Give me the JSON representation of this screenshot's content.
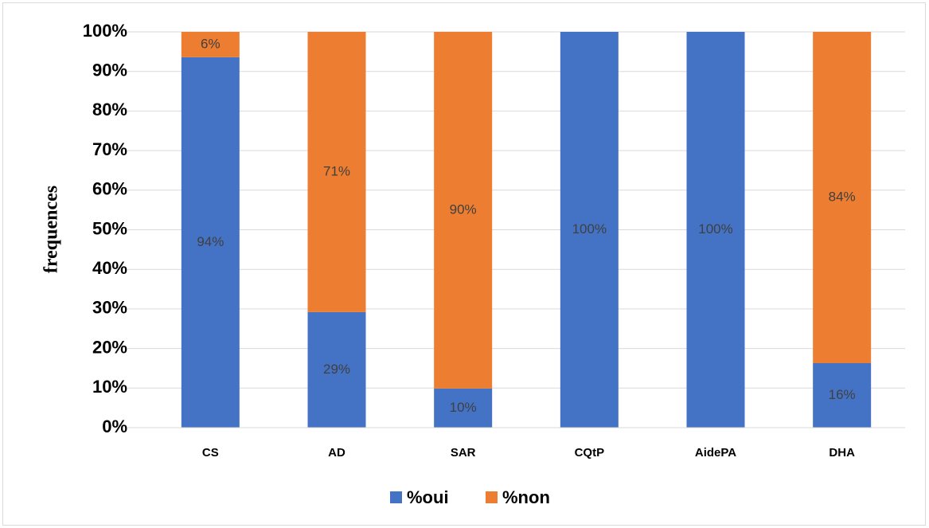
{
  "chart_data": {
    "type": "stacked_bar",
    "y_label": "frequences",
    "categories": [
      "CS",
      "AD",
      "SAR",
      "CQtP",
      "AidePA",
      "DHA"
    ],
    "series": [
      {
        "name": "%oui",
        "color": "#4472c4",
        "values": [
          93.6,
          29.2,
          9.9,
          100,
          100,
          16.3
        ],
        "value_labels": [
          "94%",
          "29%",
          "10%",
          "100%",
          "100%",
          "16%"
        ]
      },
      {
        "name": "%non",
        "color": "#ed7d31",
        "values": [
          6.4,
          70.8,
          90.1,
          0,
          0,
          83.7
        ],
        "value_labels": [
          "6%",
          "71%",
          "90%",
          null,
          null,
          "84%"
        ]
      }
    ],
    "ylim": [
      0,
      100
    ],
    "yticks": [
      {
        "value": 0,
        "label": "0%"
      },
      {
        "value": 10,
        "label": "10%"
      },
      {
        "value": 20,
        "label": "20%"
      },
      {
        "value": 30,
        "label": "30%"
      },
      {
        "value": 40,
        "label": "40%"
      },
      {
        "value": 50,
        "label": "50%"
      },
      {
        "value": 60,
        "label": "60%"
      },
      {
        "value": 70,
        "label": "70%"
      },
      {
        "value": 80,
        "label": "80%"
      },
      {
        "value": 90,
        "label": "90%"
      },
      {
        "value": 100,
        "label": "100%"
      }
    ],
    "grid": true,
    "legend": "bottom"
  }
}
